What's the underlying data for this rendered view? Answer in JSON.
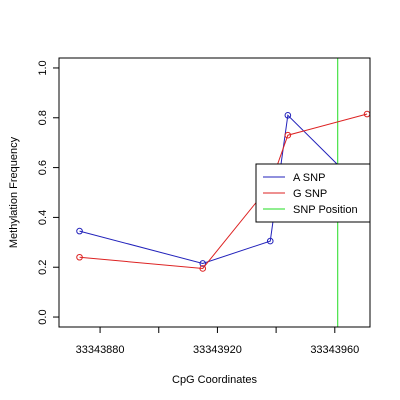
{
  "chart_data": {
    "type": "line",
    "xlabel": "CpG Coordinates",
    "ylabel": "Methylation Frequency",
    "xlim": [
      33343866,
      33343972
    ],
    "ylim": [
      -0.04,
      1.04
    ],
    "x_ticks": [
      33343880,
      33343920,
      33343960
    ],
    "y_ticks": [
      0.0,
      0.2,
      0.4,
      0.6,
      0.8,
      1.0
    ],
    "x_tick_labels": [
      "33343880",
      "33343920",
      "33343960"
    ],
    "y_tick_labels": [
      "0.0",
      "0.2",
      "0.4",
      "0.6",
      "0.8",
      "1.0"
    ],
    "series": [
      {
        "name": "A SNP",
        "color": "#2222bb",
        "x": [
          33343873,
          33343915,
          33343938,
          33343944,
          33343962
        ],
        "y": [
          0.345,
          0.215,
          0.305,
          0.81,
          0.6
        ]
      },
      {
        "name": "G SNP",
        "color": "#dd2222",
        "x": [
          33343873,
          33343915,
          33343938,
          33343944,
          33343971
        ],
        "y": [
          0.24,
          0.195,
          0.53,
          0.73,
          0.815
        ]
      }
    ],
    "snp_position": {
      "name": "SNP Position",
      "x": 33343961,
      "color": "#22dd22"
    },
    "legend": {
      "placement": "right",
      "entries": [
        {
          "label": "A SNP",
          "color": "#2222bb"
        },
        {
          "label": "G SNP",
          "color": "#dd2222"
        },
        {
          "label": "SNP Position",
          "color": "#22dd22"
        }
      ]
    },
    "grid": false
  }
}
